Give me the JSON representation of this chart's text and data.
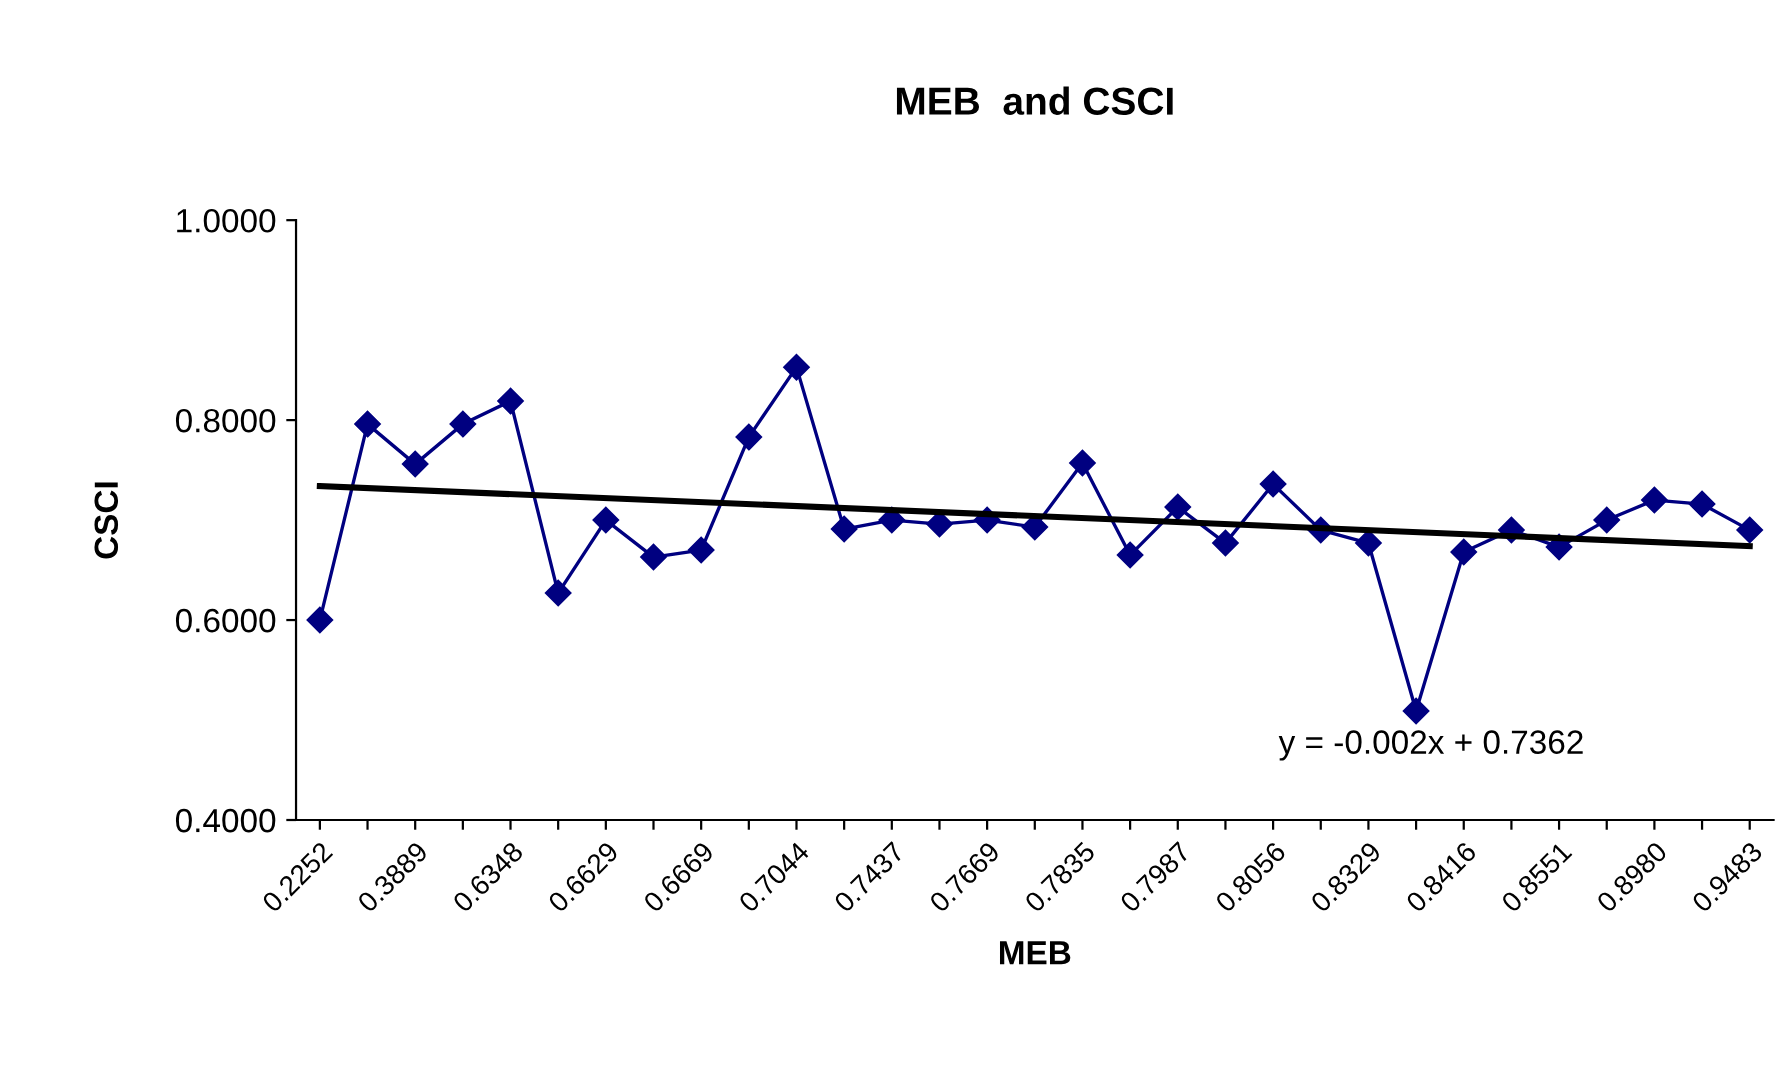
{
  "chart_data": {
    "type": "line",
    "title": "MEB  and CSCI",
    "xlabel": "MEB",
    "ylabel": "CSCI",
    "categories": [
      "0.2252",
      null,
      "0.3889",
      null,
      "0.6348",
      null,
      "0.6629",
      null,
      "0.6669",
      null,
      "0.7044",
      null,
      "0.7437",
      null,
      "0.7669",
      null,
      "0.7835",
      null,
      "0.7987",
      null,
      "0.8056",
      null,
      "0.8329",
      null,
      "0.8416",
      null,
      "0.8551",
      null,
      "0.8980",
      null,
      "0.9483"
    ],
    "series": [
      {
        "color": "#000080",
        "marker": "diamond",
        "values": [
          0.6,
          0.796,
          0.756,
          0.796,
          0.819,
          0.627,
          0.7,
          0.663,
          0.67,
          0.783,
          0.853,
          0.691,
          0.7,
          0.696,
          0.7,
          0.693,
          0.757,
          0.665,
          0.713,
          0.677,
          0.736,
          0.69,
          0.677,
          0.509,
          0.668,
          0.69,
          0.673,
          0.7,
          0.72,
          0.716,
          0.69
        ]
      },
      {
        "type": "line",
        "color": "#000000",
        "marker": "none",
        "x": [
          "0.2252",
          "0.9483"
        ],
        "values": [
          0.734,
          0.674
        ]
      }
    ],
    "annotations": [
      "y = -0.002x + 0.7362"
    ],
    "ylim": [
      0.4,
      1.0
    ],
    "yticks": [
      {
        "value": 0.4,
        "label": "0.4000"
      },
      {
        "value": 0.6,
        "label": "0.6000"
      },
      {
        "value": 0.8,
        "label": "0.8000"
      },
      {
        "value": 1.0,
        "label": "1.0000"
      }
    ],
    "grid": false,
    "legend": false
  }
}
